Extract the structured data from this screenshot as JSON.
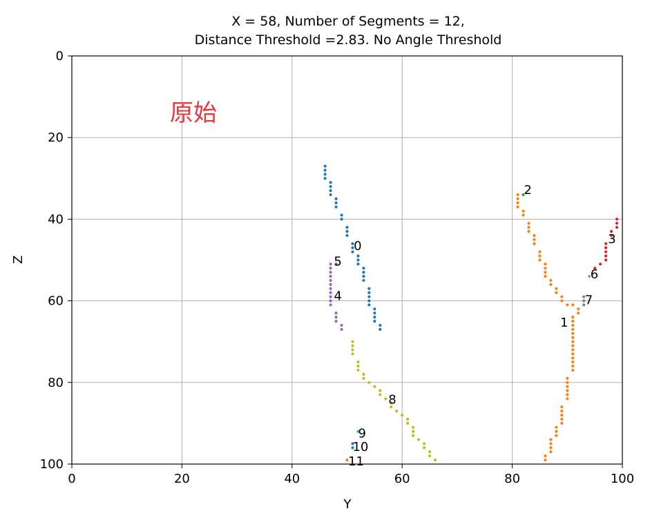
{
  "chart_data": {
    "type": "scatter",
    "title_lines": [
      "X = 58, Number of Segments = 12,",
      "Distance Threshold =2.83. No Angle Threshold"
    ],
    "xlabel": "Y",
    "ylabel": "Z",
    "xlim": [
      0,
      100
    ],
    "ylim": [
      100,
      0
    ],
    "y_inverted": true,
    "xticks": [
      0,
      20,
      40,
      60,
      80,
      100
    ],
    "yticks": [
      0,
      20,
      40,
      60,
      80,
      100
    ],
    "grid": true,
    "annotation": "原始",
    "series": [
      {
        "label": "0",
        "color": "#1f77b4",
        "label_at": [
          51.2,
          46.5
        ],
        "points": [
          [
            46,
            27
          ],
          [
            46,
            28
          ],
          [
            46,
            29
          ],
          [
            46,
            30
          ],
          [
            47,
            31
          ],
          [
            47,
            32
          ],
          [
            47,
            33
          ],
          [
            47,
            34
          ],
          [
            48,
            35
          ],
          [
            48,
            36
          ],
          [
            48,
            37
          ],
          [
            49,
            39
          ],
          [
            49,
            40
          ],
          [
            50,
            42
          ],
          [
            50,
            43
          ],
          [
            50,
            44
          ],
          [
            51,
            46
          ],
          [
            51,
            47
          ],
          [
            51,
            48
          ],
          [
            52,
            49
          ],
          [
            52,
            50
          ],
          [
            52,
            51
          ],
          [
            53,
            52
          ],
          [
            53,
            53
          ],
          [
            53,
            54
          ],
          [
            53,
            55
          ],
          [
            54,
            57
          ],
          [
            54,
            58
          ],
          [
            54,
            59
          ],
          [
            54,
            60
          ],
          [
            54,
            61
          ],
          [
            55,
            62
          ],
          [
            55,
            63
          ],
          [
            55,
            64
          ],
          [
            55,
            65
          ],
          [
            56,
            66
          ],
          [
            56,
            67
          ]
        ]
      },
      {
        "label": "1",
        "color": "#ff7f0e",
        "label_at": [
          88.7,
          65.3
        ],
        "points": [
          [
            81,
            34
          ],
          [
            81,
            35
          ],
          [
            81,
            36
          ],
          [
            81,
            37
          ],
          [
            82,
            38
          ],
          [
            82,
            39
          ],
          [
            83,
            41
          ],
          [
            83,
            42
          ],
          [
            83,
            43
          ],
          [
            84,
            44
          ],
          [
            84,
            45
          ],
          [
            84,
            46
          ],
          [
            85,
            48
          ],
          [
            85,
            49
          ],
          [
            85,
            50
          ],
          [
            86,
            51
          ],
          [
            86,
            52
          ],
          [
            86,
            53
          ],
          [
            86,
            54
          ],
          [
            87,
            55
          ],
          [
            87,
            56
          ],
          [
            88,
            57
          ],
          [
            88,
            58
          ],
          [
            89,
            59
          ],
          [
            89,
            60
          ],
          [
            90,
            61
          ],
          [
            91,
            61
          ],
          [
            92,
            62
          ],
          [
            92,
            63
          ],
          [
            91,
            64
          ],
          [
            91,
            65
          ],
          [
            91,
            66
          ],
          [
            91,
            67
          ],
          [
            91,
            68
          ],
          [
            91,
            69
          ],
          [
            91,
            70
          ],
          [
            91,
            71
          ],
          [
            91,
            72
          ],
          [
            91,
            73
          ],
          [
            91,
            74
          ],
          [
            91,
            75
          ],
          [
            91,
            76
          ],
          [
            91,
            77
          ],
          [
            90,
            79
          ],
          [
            90,
            80
          ],
          [
            90,
            81
          ],
          [
            90,
            82
          ],
          [
            90,
            83
          ],
          [
            90,
            84
          ],
          [
            89,
            86
          ],
          [
            89,
            87
          ],
          [
            89,
            88
          ],
          [
            89,
            89
          ],
          [
            89,
            90
          ],
          [
            88,
            91
          ],
          [
            88,
            92
          ],
          [
            88,
            93
          ],
          [
            87,
            94
          ],
          [
            87,
            95
          ],
          [
            87,
            96
          ],
          [
            87,
            97
          ],
          [
            86,
            98
          ],
          [
            86,
            99
          ]
        ]
      },
      {
        "label": "2",
        "color": "#2ca02c",
        "label_at": [
          82.1,
          32.8
        ],
        "points": [
          [
            82,
            34
          ]
        ]
      },
      {
        "label": "3",
        "color": "#d62728",
        "label_at": [
          97.4,
          44.8
        ],
        "points": [
          [
            99,
            40
          ],
          [
            99,
            41
          ],
          [
            99,
            42
          ],
          [
            98,
            43
          ],
          [
            98,
            44
          ],
          [
            97,
            46
          ],
          [
            97,
            47
          ],
          [
            97,
            48
          ],
          [
            97,
            49
          ],
          [
            97,
            50
          ],
          [
            96,
            51
          ],
          [
            95,
            52
          ]
        ]
      },
      {
        "label": "4",
        "color": "#9467bd",
        "label_at": [
          47.6,
          58.8
        ],
        "points": [
          [
            47,
            51
          ],
          [
            47,
            52
          ],
          [
            47,
            53
          ],
          [
            47,
            54
          ],
          [
            47,
            55
          ],
          [
            47,
            56
          ],
          [
            47,
            57
          ],
          [
            47,
            58
          ],
          [
            47,
            59
          ],
          [
            47,
            60
          ],
          [
            47,
            61
          ],
          [
            48,
            63
          ],
          [
            48,
            64
          ],
          [
            48,
            65
          ],
          [
            49,
            66
          ],
          [
            49,
            67
          ]
        ]
      },
      {
        "label": "5",
        "color": "#8c564b",
        "label_at": [
          47.6,
          50.3
        ],
        "points": [
          [
            48,
            51
          ]
        ]
      },
      {
        "label": "6",
        "color": "#e377c2",
        "label_at": [
          94.2,
          53.5
        ],
        "points": [
          [
            94,
            54
          ]
        ]
      },
      {
        "label": "7",
        "color": "#7f7f7f",
        "label_at": [
          93.2,
          59.8
        ],
        "points": [
          [
            93,
            59
          ],
          [
            93,
            60
          ],
          [
            93,
            61
          ]
        ]
      },
      {
        "label": "8",
        "color": "#bcbd22",
        "label_at": [
          57.5,
          84.2
        ],
        "points": [
          [
            51,
            70
          ],
          [
            51,
            71
          ],
          [
            51,
            72
          ],
          [
            51,
            73
          ],
          [
            52,
            75
          ],
          [
            52,
            76
          ],
          [
            52,
            77
          ],
          [
            53,
            78
          ],
          [
            53,
            79
          ],
          [
            54,
            80
          ],
          [
            55,
            81
          ],
          [
            56,
            82
          ],
          [
            56,
            83
          ],
          [
            57,
            84
          ],
          [
            58,
            85
          ],
          [
            58,
            86
          ],
          [
            59,
            87
          ],
          [
            60,
            88
          ],
          [
            61,
            89
          ],
          [
            61,
            90
          ],
          [
            62,
            91
          ],
          [
            62,
            92
          ],
          [
            62,
            93
          ],
          [
            63,
            94
          ],
          [
            64,
            95
          ],
          [
            64,
            96
          ],
          [
            65,
            97
          ],
          [
            65,
            98
          ],
          [
            66,
            99
          ]
        ]
      },
      {
        "label": "9",
        "color": "#17becf",
        "label_at": [
          52.0,
          92.5
        ],
        "points": [
          [
            52,
            92
          ]
        ]
      },
      {
        "label": "10",
        "color": "#1f77b4",
        "label_at": [
          51.0,
          95.8
        ],
        "points": [
          [
            51,
            95
          ],
          [
            51,
            96
          ]
        ]
      },
      {
        "label": "11",
        "color": "#ff7f0e",
        "label_at": [
          50.2,
          99.3
        ],
        "points": [
          [
            50,
            99
          ]
        ]
      }
    ]
  }
}
